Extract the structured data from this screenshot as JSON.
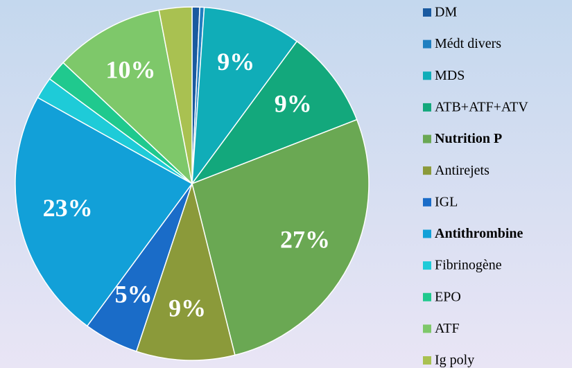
{
  "chart_data": {
    "type": "pie",
    "categories": [
      "DM",
      "Médt divers",
      "MDS",
      "ATB+ATF+ATV",
      "Nutrition P",
      "Antirejets",
      "IGL",
      "Antithrombine",
      "Fibrinogène",
      "EPO",
      "ATF",
      "Ig poly"
    ],
    "values": [
      0.7,
      0.4,
      9,
      9,
      27,
      9,
      5,
      23,
      2,
      1.9,
      10,
      3
    ],
    "value_labels": [
      null,
      null,
      "9%",
      "9%",
      "27%",
      "9%",
      "5%",
      "23%",
      null,
      null,
      "10%",
      null
    ],
    "colors": [
      "#1a5aa0",
      "#1f7fc0",
      "#10adb8",
      "#13a87c",
      "#6aa853",
      "#8b9a3a",
      "#1a6cc8",
      "#12a0d8",
      "#1ecbd8",
      "#20c98e",
      "#7ec86a",
      "#a9c151"
    ],
    "legend_bold": [
      4,
      7
    ],
    "legend": "right"
  }
}
